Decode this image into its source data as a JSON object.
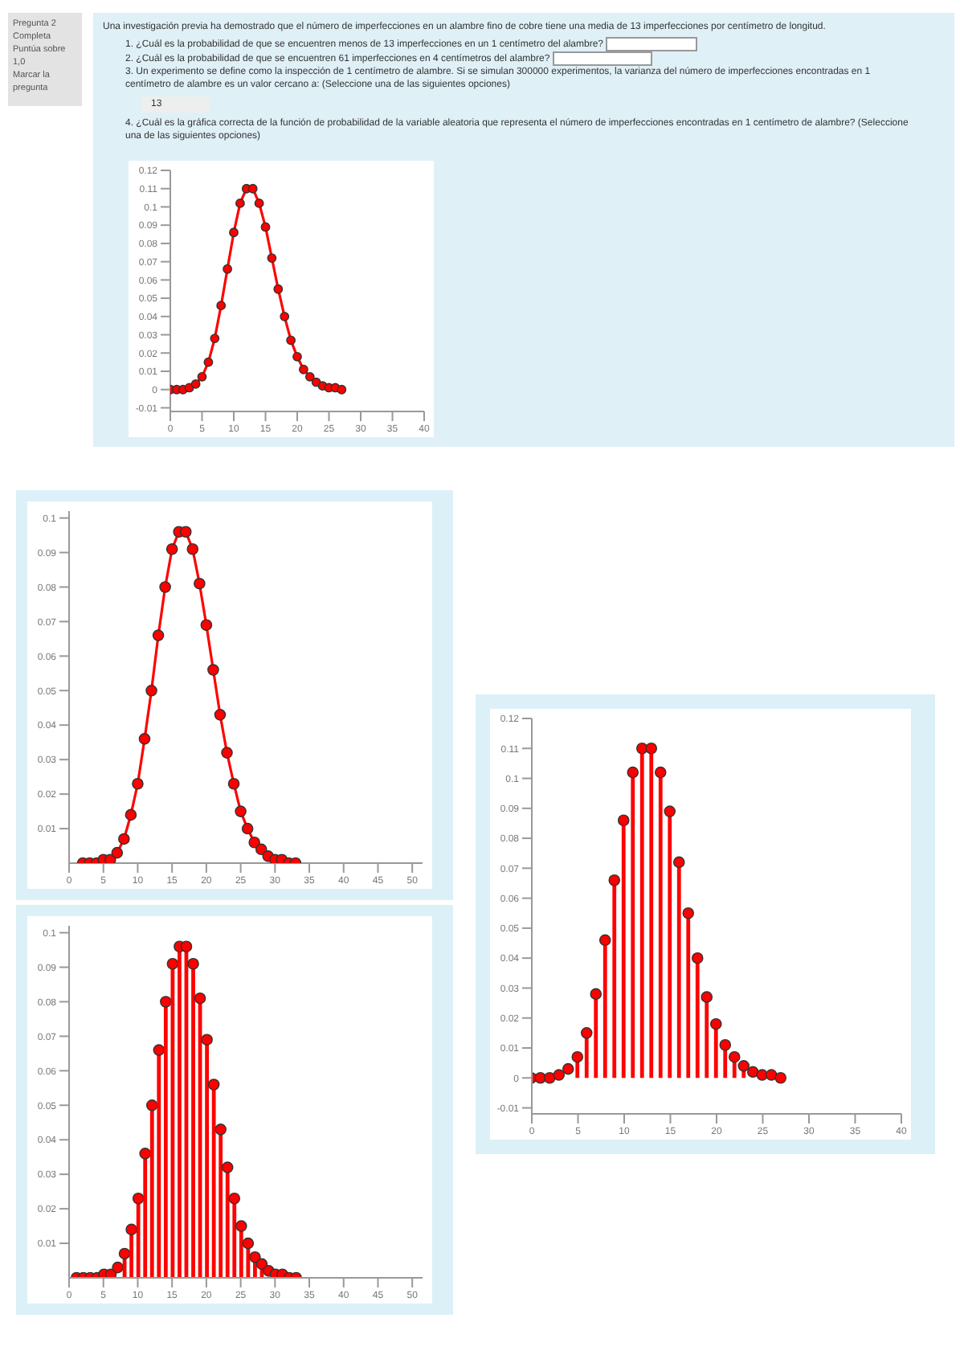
{
  "chart_data": [
    {
      "type": "line",
      "title": "Una investigación previa ha demostrado que el número de imperfecciones en un alambre fino de cobre tiene una media de 13 imperfecciones por centímetro de longitud.",
      "annotations": [
        "Pregunta 2",
        "Completa",
        "Puntúa sobre 1,0",
        "Marcar la pregunta",
        "1. ¿Cuál es la probabilidad de que se encuentren menos de 13 imperfecciones en un 1 centímetro del alambre?",
        "2. ¿Cuál es la probabilidad de que se encuentren 61 imperfecciones en 4 centímetros del alambre?",
        "3. Un experimento se define como la inspección de 1 centímetro de alambre. Si se simulan 300000 experimentos, la varianza del número de imperfecciones encontradas en 1 centímetro de alambre es un valor cercano a: (Seleccione una de las siguientes opciones)",
        "4. ¿Cuál es la gráfica correcta de la función de probabilidad de la variable aleatoria que representa el número de imperfecciones encontradas en 1 centímetro de alambre? (Seleccione una de las siguientes opciones)",
        "13"
      ],
      "x": [
        0,
        1,
        2,
        3,
        4,
        5,
        6,
        7,
        8,
        9,
        10,
        11,
        12,
        13,
        14,
        15,
        16,
        17,
        18,
        19,
        20,
        21,
        22,
        23,
        24,
        25,
        26,
        27
      ],
      "values": [
        0,
        0,
        0,
        0.001,
        0.003,
        0.007,
        0.015,
        0.028,
        0.046,
        0.066,
        0.086,
        0.102,
        0.11,
        0.11,
        0.102,
        0.089,
        0.072,
        0.055,
        0.04,
        0.027,
        0.018,
        0.011,
        0.007,
        0.004,
        0.002,
        0.001,
        0.001,
        0
      ],
      "color": "#ff0000",
      "marker": "circle",
      "line_style": "solid",
      "xlim": [
        0,
        40
      ],
      "xticks": [
        0,
        5,
        10,
        15,
        20,
        25,
        30,
        35,
        40
      ],
      "ylim": [
        -0.012,
        0.12
      ],
      "yticks": [
        -0.01,
        0,
        0.01,
        0.02,
        0.03,
        0.04,
        0.05,
        0.06,
        0.07,
        0.08,
        0.09,
        0.1,
        0.11,
        0.12
      ]
    },
    {
      "type": "line",
      "x": [
        2,
        3,
        4,
        5,
        6,
        7,
        8,
        9,
        10,
        11,
        12,
        13,
        14,
        15,
        16,
        17,
        18,
        19,
        20,
        21,
        22,
        23,
        24,
        25,
        26,
        27,
        28,
        29,
        30,
        31,
        32,
        33
      ],
      "values": [
        0,
        0,
        0,
        0.001,
        0.001,
        0.003,
        0.007,
        0.014,
        0.023,
        0.036,
        0.05,
        0.066,
        0.08,
        0.091,
        0.096,
        0.096,
        0.091,
        0.081,
        0.069,
        0.056,
        0.043,
        0.032,
        0.023,
        0.015,
        0.01,
        0.006,
        0.004,
        0.002,
        0.001,
        0.001,
        0,
        0
      ],
      "color": "#ff0000",
      "marker": "circle",
      "line_style": "solid",
      "xlim": [
        0,
        51.5
      ],
      "xticks": [
        0,
        5,
        10,
        15,
        20,
        25,
        30,
        35,
        40,
        45,
        50
      ],
      "ylim": [
        0,
        0.102
      ],
      "yticks": [
        0.01,
        0.02,
        0.03,
        0.04,
        0.05,
        0.06,
        0.07,
        0.08,
        0.09,
        0.1
      ]
    },
    {
      "type": "lollipop",
      "x": [
        1,
        2,
        3,
        4,
        5,
        6,
        7,
        8,
        9,
        10,
        11,
        12,
        13,
        14,
        15,
        16,
        17,
        18,
        19,
        20,
        21,
        22,
        23,
        24,
        25,
        26,
        27,
        28,
        29,
        30,
        31,
        32,
        33
      ],
      "values": [
        0,
        0,
        0,
        0,
        0.001,
        0.001,
        0.003,
        0.007,
        0.014,
        0.023,
        0.036,
        0.05,
        0.066,
        0.08,
        0.091,
        0.096,
        0.096,
        0.091,
        0.081,
        0.069,
        0.056,
        0.043,
        0.032,
        0.023,
        0.015,
        0.01,
        0.006,
        0.004,
        0.002,
        0.001,
        0.001,
        0,
        0
      ],
      "color": "#ff0000",
      "marker": "circle",
      "xlim": [
        0,
        51.5
      ],
      "xticks": [
        0,
        5,
        10,
        15,
        20,
        25,
        30,
        35,
        40,
        45,
        50
      ],
      "ylim": [
        0,
        0.102
      ],
      "yticks": [
        0.01,
        0.02,
        0.03,
        0.04,
        0.05,
        0.06,
        0.07,
        0.08,
        0.09,
        0.1
      ]
    },
    {
      "type": "lollipop",
      "x": [
        0,
        1,
        2,
        3,
        4,
        5,
        6,
        7,
        8,
        9,
        10,
        11,
        12,
        13,
        14,
        15,
        16,
        17,
        18,
        19,
        20,
        21,
        22,
        23,
        24,
        25,
        26,
        27
      ],
      "values": [
        0,
        0,
        0,
        0.001,
        0.003,
        0.007,
        0.015,
        0.028,
        0.046,
        0.066,
        0.086,
        0.102,
        0.11,
        0.11,
        0.102,
        0.089,
        0.072,
        0.055,
        0.04,
        0.027,
        0.018,
        0.011,
        0.007,
        0.004,
        0.002,
        0.001,
        0.001,
        0
      ],
      "color": "#ff0000",
      "marker": "circle",
      "xlim": [
        0,
        40
      ],
      "xticks": [
        0,
        5,
        10,
        15,
        20,
        25,
        30,
        35,
        40
      ],
      "ylim": [
        -0.012,
        0.12
      ],
      "yticks": [
        -0.01,
        0,
        0.01,
        0.02,
        0.03,
        0.04,
        0.05,
        0.06,
        0.07,
        0.08,
        0.09,
        0.1,
        0.11,
        0.12
      ]
    }
  ]
}
